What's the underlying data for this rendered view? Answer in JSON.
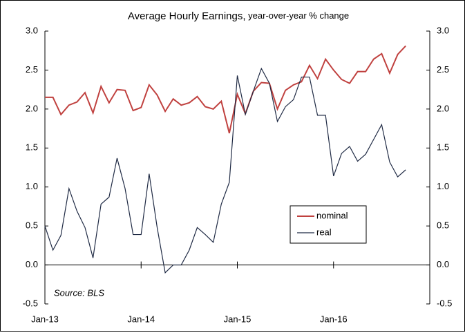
{
  "chart_data": {
    "type": "line",
    "title": "Average Hourly Earnings,",
    "subtitle": "year-over-year % change",
    "annotation": "Source: BLS",
    "categories": [
      "Jan-13",
      null,
      null,
      null,
      null,
      null,
      null,
      null,
      null,
      null,
      null,
      null,
      "Jan-14",
      null,
      null,
      null,
      null,
      null,
      null,
      null,
      null,
      null,
      null,
      null,
      "Jan-15",
      null,
      null,
      null,
      null,
      null,
      null,
      null,
      null,
      null,
      null,
      null,
      "Jan-16",
      null,
      null,
      null,
      null,
      null,
      null,
      null,
      null,
      null
    ],
    "series": [
      {
        "name": "nominal",
        "color": "#c0413f",
        "values": [
          2.15,
          2.15,
          1.93,
          2.05,
          2.09,
          2.21,
          1.95,
          2.29,
          2.08,
          2.25,
          2.24,
          1.98,
          2.02,
          2.31,
          2.18,
          1.97,
          2.13,
          2.05,
          2.08,
          2.16,
          2.03,
          2.0,
          2.1,
          1.69,
          2.19,
          1.94,
          2.23,
          2.34,
          2.33,
          2.0,
          2.24,
          2.31,
          2.35,
          2.56,
          2.39,
          2.64,
          2.5,
          2.38,
          2.33,
          2.48,
          2.48,
          2.64,
          2.71,
          2.46,
          2.7,
          2.81
        ]
      },
      {
        "name": "real",
        "color": "#1f2a44",
        "values": [
          0.5,
          0.19,
          0.38,
          0.98,
          0.69,
          0.48,
          0.09,
          0.78,
          0.87,
          1.37,
          0.98,
          0.39,
          0.39,
          1.17,
          0.48,
          -0.1,
          0.0,
          0.0,
          0.19,
          0.48,
          0.39,
          0.29,
          0.78,
          1.06,
          2.43,
          1.93,
          2.23,
          2.52,
          2.33,
          1.84,
          2.03,
          2.12,
          2.41,
          2.41,
          1.92,
          1.92,
          1.14,
          1.43,
          1.52,
          1.33,
          1.42,
          1.61,
          1.8,
          1.32,
          1.13,
          1.22
        ]
      }
    ],
    "ylim": [
      -0.5,
      3
    ],
    "yticks": [
      -0.5,
      {
        "value": 0,
        "label": "0.0"
      },
      0.5,
      {
        "value": 1,
        "label": "1.0"
      },
      1.5,
      {
        "value": 2,
        "label": "2.0"
      },
      2.5,
      {
        "value": 3,
        "label": "3.0"
      }
    ],
    "y2lim": [
      -0.5,
      3
    ],
    "y2ticks": [
      -0.5,
      {
        "value": 0,
        "label": "0.0"
      },
      0.5,
      {
        "value": 1,
        "label": "1.0"
      },
      1.5,
      {
        "value": 2,
        "label": "2.0"
      },
      2.5,
      {
        "value": 3,
        "label": "3.0"
      }
    ],
    "grid": false
  }
}
